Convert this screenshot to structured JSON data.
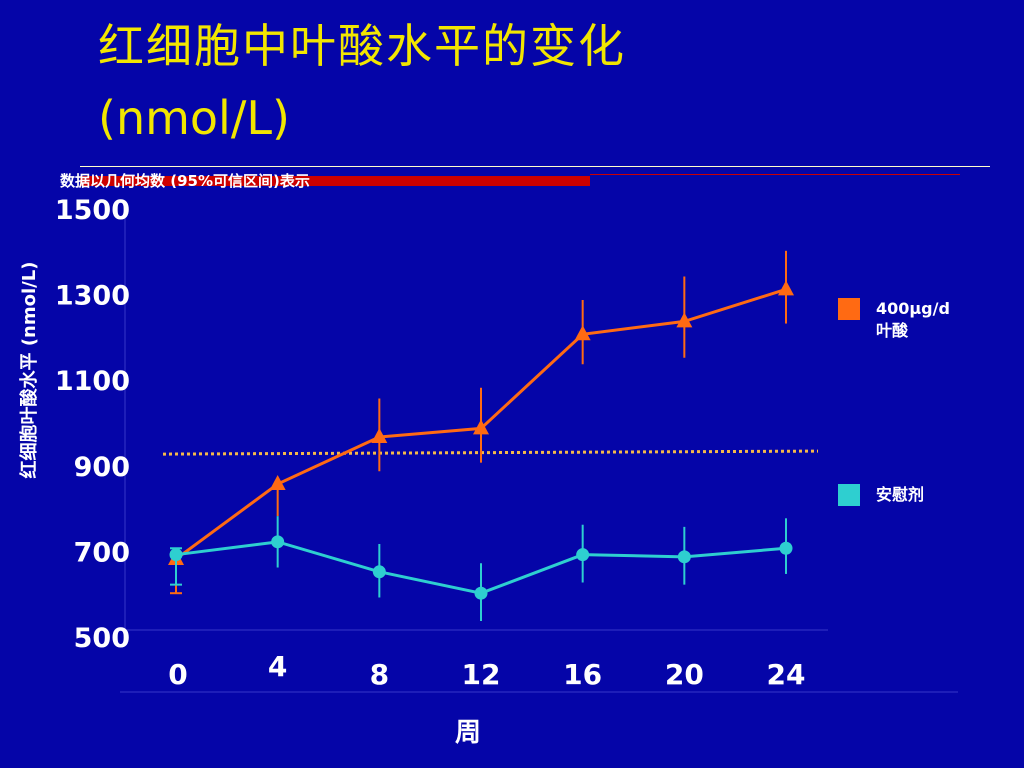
{
  "slide": {
    "title_line1": "红细胞中叶酸水平的变化",
    "title_line2": "(nmol/L)",
    "note": "数据以几何均数 (95%可信区间)表示"
  },
  "chart_data": {
    "type": "line",
    "xlabel": "周",
    "ylabel": "红细胞叶酸水平 (nmol/L)",
    "x": [
      0,
      4,
      8,
      12,
      16,
      20,
      24
    ],
    "x_tick_labels": [
      "0",
      "4",
      "8",
      "12",
      "16",
      "20",
      "24"
    ],
    "ylim": [
      500,
      1500
    ],
    "y_ticks": [
      500,
      700,
      900,
      1100,
      1300,
      1500
    ],
    "y_tick_labels": [
      "500",
      "700",
      "900",
      "1100",
      "1300",
      "1500"
    ],
    "grid": false,
    "legend_position": "right",
    "series": [
      {
        "name": "400μg/d 叶酸",
        "name_line1": "400μg/d",
        "name_line2": "叶酸",
        "color": "#ff6a13",
        "marker": "triangle",
        "values": [
          680,
          855,
          965,
          985,
          1205,
          1235,
          1310
        ],
        "ci_low": [
          600,
          780,
          885,
          905,
          1135,
          1150,
          1230
        ],
        "ci_high": [
          695,
          855,
          1055,
          1080,
          1285,
          1340,
          1400
        ]
      },
      {
        "name": "安慰剂",
        "color": "#2ecfd0",
        "marker": "circle",
        "values": [
          690,
          720,
          650,
          600,
          690,
          685,
          705
        ],
        "ci_low": [
          620,
          660,
          590,
          535,
          625,
          620,
          645
        ],
        "ci_high": [
          705,
          780,
          715,
          670,
          760,
          755,
          775
        ]
      }
    ],
    "reference_line": {
      "value": 925,
      "color": "#f5b94a",
      "style": "dotted"
    }
  }
}
